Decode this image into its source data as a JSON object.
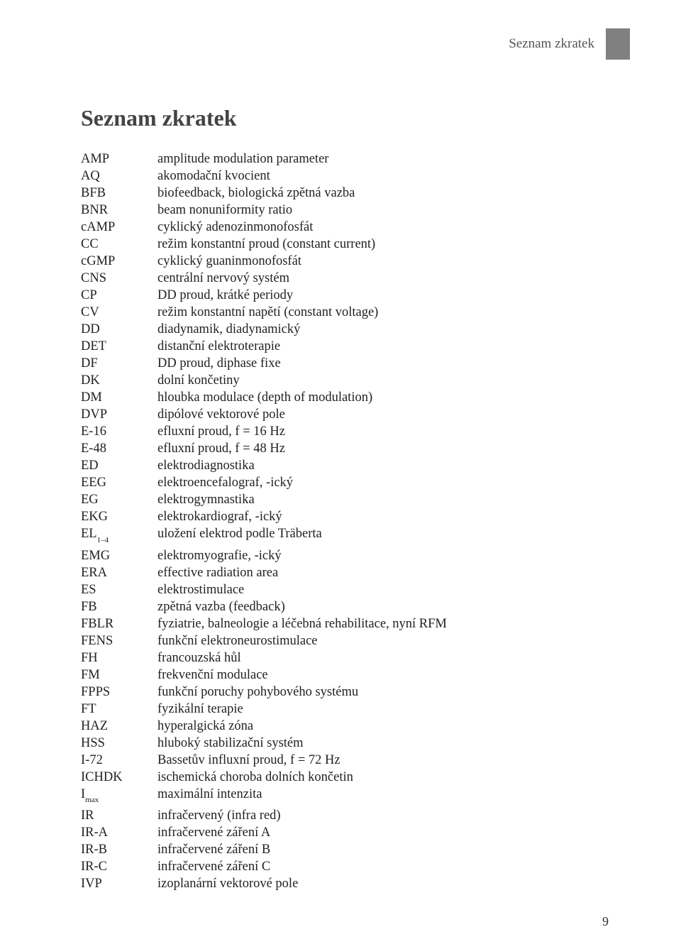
{
  "header": {
    "running_title": "Seznam zkratek",
    "tab_color": "#808080"
  },
  "title": "Seznam zkratek",
  "page_number": "9",
  "entries": [
    {
      "abbr": "AMP",
      "def": "amplitude modulation parameter"
    },
    {
      "abbr": "AQ",
      "def": "akomodační kvocient"
    },
    {
      "abbr": "BFB",
      "def": "biofeedback, biologická zpětná vazba"
    },
    {
      "abbr": "BNR",
      "def": "beam nonuniformity ratio"
    },
    {
      "abbr": "cAMP",
      "def": "cyklický adenozinmonofosfát"
    },
    {
      "abbr": "CC",
      "def": "režim konstantní proud (constant current)"
    },
    {
      "abbr": "cGMP",
      "def": "cyklický guaninmonofosfát"
    },
    {
      "abbr": "CNS",
      "def": "centrální nervový systém"
    },
    {
      "abbr": "CP",
      "def": "DD proud, krátké periody"
    },
    {
      "abbr": "CV",
      "def": "režim konstantní napětí (constant voltage)"
    },
    {
      "abbr": "DD",
      "def": "diadynamik, diadynamický"
    },
    {
      "abbr": "DET",
      "def": "distanční elektroterapie"
    },
    {
      "abbr": "DF",
      "def": "DD proud, diphase fixe"
    },
    {
      "abbr": "DK",
      "def": "dolní končetiny"
    },
    {
      "abbr": "DM",
      "def": "hloubka modulace (depth of modulation)"
    },
    {
      "abbr": "DVP",
      "def": "dipólové vektorové pole"
    },
    {
      "abbr": "E-16",
      "def": "efluxní proud, f = 16 Hz"
    },
    {
      "abbr": "E-48",
      "def": "efluxní proud, f = 48 Hz"
    },
    {
      "abbr": "ED",
      "def": "elektrodiagnostika"
    },
    {
      "abbr": "EEG",
      "def": "elektroencefalograf, -ický"
    },
    {
      "abbr": "EG",
      "def": "elektrogymnastika"
    },
    {
      "abbr": "EKG",
      "def": "elektrokardiograf, -ický"
    },
    {
      "abbr": "EL",
      "sub": "1–4",
      "def": "uložení elektrod podle Träberta"
    },
    {
      "abbr": "EMG",
      "def": "elektromyografie, -ický"
    },
    {
      "abbr": "ERA",
      "def": "effective radiation area"
    },
    {
      "abbr": "ES",
      "def": "elektrostimulace"
    },
    {
      "abbr": "FB",
      "def": "zpětná vazba (feedback)"
    },
    {
      "abbr": "FBLR",
      "def": "fyziatrie, balneologie a léčebná rehabilitace, nyní RFM"
    },
    {
      "abbr": "FENS",
      "def": "funkční elektroneurostimulace"
    },
    {
      "abbr": "FH",
      "def": "francouzská hůl"
    },
    {
      "abbr": "FM",
      "def": "frekvenční modulace"
    },
    {
      "abbr": "FPPS",
      "def": "funkční poruchy pohybového systému"
    },
    {
      "abbr": "FT",
      "def": "fyzikální terapie"
    },
    {
      "abbr": "HAZ",
      "def": "hyperalgická zóna"
    },
    {
      "abbr": "HSS",
      "def": "hluboký stabilizační systém"
    },
    {
      "abbr": "I-72",
      "def": "Bassetův influxní proud, f = 72 Hz"
    },
    {
      "abbr": "ICHDK",
      "def": "ischemická choroba dolních končetin"
    },
    {
      "abbr": "I",
      "sub": "max",
      "def": "maximální intenzita"
    },
    {
      "abbr": "IR",
      "def": "infračervený (infra red)"
    },
    {
      "abbr": "IR-A",
      "def": "infračervené záření A"
    },
    {
      "abbr": "IR-B",
      "def": "infračervené záření B"
    },
    {
      "abbr": "IR-C",
      "def": "infračervené záření C"
    },
    {
      "abbr": "IVP",
      "def": "izoplanární vektorové pole"
    }
  ]
}
